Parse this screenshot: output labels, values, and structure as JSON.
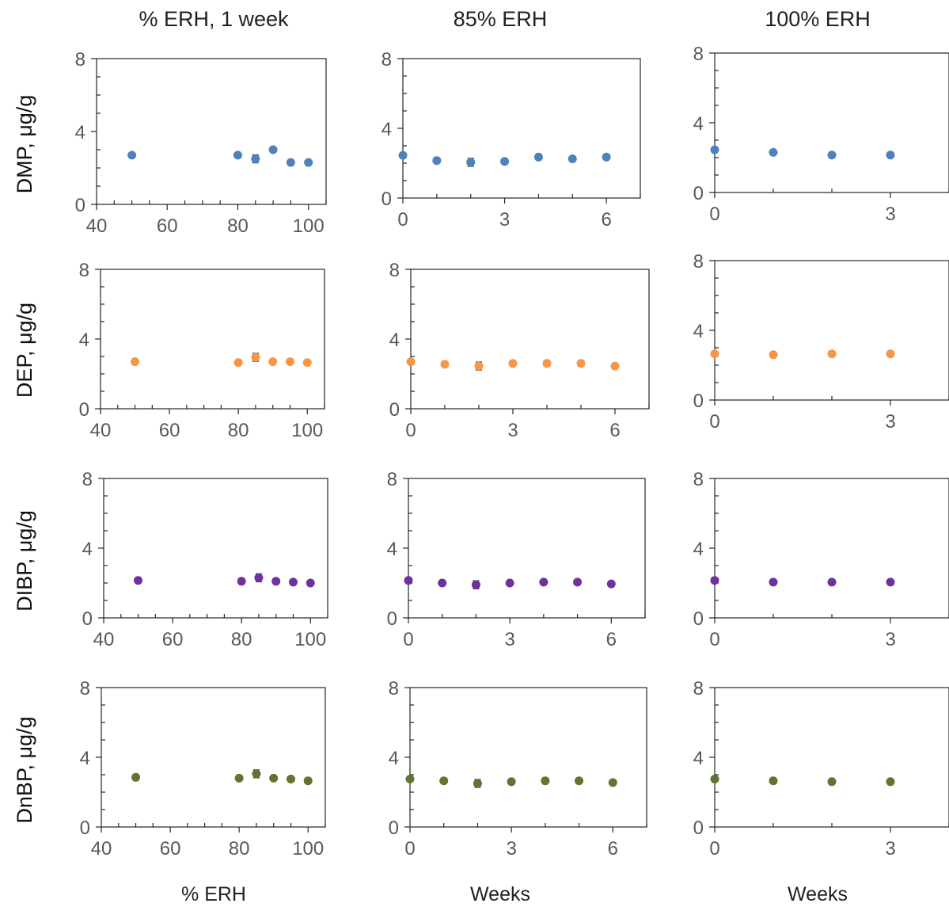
{
  "column_titles": [
    "% ERH, 1 week",
    "85% ERH",
    "100% ERH"
  ],
  "row_labels": [
    "DMP, μg/g",
    "DEP, μg/g",
    "DIBP, μg/g",
    "DnBP, μg/g"
  ],
  "x_labels": [
    "% ERH",
    "Weeks",
    "Weeks"
  ],
  "colors": {
    "DMP": "#4f81bd",
    "DEP": "#f79646",
    "DIBP": "#7030a0",
    "DnBP": "#5f7530",
    "axis": "#262626",
    "tick_text": "#595959"
  },
  "chart_data": [
    {
      "type": "scatter",
      "panel": "DMP vs % ERH, 1 week",
      "x_tick_labels": [
        "40",
        "60",
        "80",
        "100"
      ],
      "y_tick_labels": [
        "0",
        "4",
        "8"
      ],
      "xlim": [
        40,
        105
      ],
      "ylim": [
        0,
        8
      ],
      "series": [
        {
          "x": [
            50,
            80,
            85,
            90,
            95,
            100
          ],
          "y": [
            2.7,
            2.7,
            2.5,
            3.0,
            2.3,
            2.3
          ]
        }
      ]
    },
    {
      "type": "scatter",
      "panel": "DMP, 85% ERH",
      "x_tick_labels": [
        "0",
        "3",
        "6"
      ],
      "y_tick_labels": [
        "0",
        "4",
        "8"
      ],
      "xlim": [
        0,
        7
      ],
      "ylim": [
        0,
        8
      ],
      "series": [
        {
          "x": [
            0,
            1,
            2,
            3,
            4,
            5,
            6
          ],
          "y": [
            2.45,
            2.15,
            2.05,
            2.1,
            2.35,
            2.25,
            2.35
          ]
        }
      ]
    },
    {
      "type": "scatter",
      "panel": "DMP, 100% ERH",
      "x_tick_labels": [
        "0",
        "3"
      ],
      "y_tick_labels": [
        "0",
        "4",
        "8"
      ],
      "xlim": [
        0,
        4.0
      ],
      "ylim": [
        0,
        8
      ],
      "series": [
        {
          "x": [
            0,
            1,
            2,
            3
          ],
          "y": [
            2.45,
            2.3,
            2.15,
            2.15
          ]
        }
      ]
    },
    {
      "type": "scatter",
      "panel": "DEP vs % ERH, 1 week",
      "x_tick_labels": [
        "40",
        "60",
        "80",
        "100"
      ],
      "y_tick_labels": [
        "0",
        "4",
        "8"
      ],
      "xlim": [
        40,
        105
      ],
      "ylim": [
        0,
        8
      ],
      "series": [
        {
          "x": [
            50,
            80,
            85,
            90,
            95,
            100
          ],
          "y": [
            2.7,
            2.65,
            2.95,
            2.7,
            2.7,
            2.65
          ]
        }
      ]
    },
    {
      "type": "scatter",
      "panel": "DEP, 85% ERH",
      "x_tick_labels": [
        "0",
        "3",
        "6"
      ],
      "y_tick_labels": [
        "0",
        "4",
        "8"
      ],
      "xlim": [
        0,
        7
      ],
      "ylim": [
        0,
        8
      ],
      "series": [
        {
          "x": [
            0,
            1,
            2,
            3,
            4,
            5,
            6
          ],
          "y": [
            2.7,
            2.55,
            2.45,
            2.6,
            2.6,
            2.6,
            2.45
          ]
        }
      ]
    },
    {
      "type": "scatter",
      "panel": "DEP, 100% ERH",
      "x_tick_labels": [
        "0",
        "3"
      ],
      "y_tick_labels": [
        "0",
        "4",
        "8"
      ],
      "xlim": [
        0,
        4.0
      ],
      "ylim": [
        0,
        8
      ],
      "series": [
        {
          "x": [
            0,
            1,
            2,
            3
          ],
          "y": [
            2.65,
            2.6,
            2.65,
            2.65
          ]
        }
      ]
    },
    {
      "type": "scatter",
      "panel": "DIBP vs % ERH, 1 week",
      "x_tick_labels": [
        "40",
        "60",
        "80",
        "100"
      ],
      "y_tick_labels": [
        "0",
        "4",
        "8"
      ],
      "xlim": [
        40,
        105
      ],
      "ylim": [
        0,
        8
      ],
      "series": [
        {
          "x": [
            50,
            80,
            85,
            90,
            95,
            100
          ],
          "y": [
            2.15,
            2.1,
            2.3,
            2.1,
            2.05,
            2.0
          ]
        }
      ]
    },
    {
      "type": "scatter",
      "panel": "DIBP, 85% ERH",
      "x_tick_labels": [
        "0",
        "3",
        "6"
      ],
      "y_tick_labels": [
        "0",
        "4",
        "8"
      ],
      "xlim": [
        0,
        7
      ],
      "ylim": [
        0,
        8
      ],
      "series": [
        {
          "x": [
            0,
            1,
            2,
            3,
            4,
            5,
            6
          ],
          "y": [
            2.15,
            2.0,
            1.9,
            2.0,
            2.05,
            2.05,
            1.95
          ]
        }
      ]
    },
    {
      "type": "scatter",
      "panel": "DIBP, 100% ERH",
      "x_tick_labels": [
        "0",
        "3"
      ],
      "y_tick_labels": [
        "0",
        "4",
        "8"
      ],
      "xlim": [
        0,
        4.0
      ],
      "ylim": [
        0,
        8
      ],
      "series": [
        {
          "x": [
            0,
            1,
            2,
            3
          ],
          "y": [
            2.15,
            2.05,
            2.05,
            2.05
          ]
        }
      ]
    },
    {
      "type": "scatter",
      "panel": "DnBP vs % ERH, 1 week",
      "x_tick_labels": [
        "40",
        "60",
        "80",
        "100"
      ],
      "y_tick_labels": [
        "0",
        "4",
        "8"
      ],
      "xlim": [
        40,
        105
      ],
      "ylim": [
        0,
        8
      ],
      "series": [
        {
          "x": [
            50,
            80,
            85,
            90,
            95,
            100
          ],
          "y": [
            2.85,
            2.8,
            3.05,
            2.8,
            2.75,
            2.65
          ]
        }
      ]
    },
    {
      "type": "scatter",
      "panel": "DnBP, 85% ERH",
      "x_tick_labels": [
        "0",
        "3",
        "6"
      ],
      "y_tick_labels": [
        "0",
        "4",
        "8"
      ],
      "xlim": [
        0,
        7
      ],
      "ylim": [
        0,
        8
      ],
      "series": [
        {
          "x": [
            0,
            1,
            2,
            3,
            4,
            5,
            6
          ],
          "y": [
            2.75,
            2.65,
            2.5,
            2.6,
            2.65,
            2.65,
            2.55
          ]
        }
      ]
    },
    {
      "type": "scatter",
      "panel": "DnBP, 100% ERH",
      "x_tick_labels": [
        "0",
        "3"
      ],
      "y_tick_labels": [
        "0",
        "4",
        "8"
      ],
      "xlim": [
        0,
        4.0
      ],
      "ylim": [
        0,
        8
      ],
      "series": [
        {
          "x": [
            0,
            1,
            2,
            3
          ],
          "y": [
            2.75,
            2.65,
            2.6,
            2.6
          ]
        }
      ]
    }
  ]
}
